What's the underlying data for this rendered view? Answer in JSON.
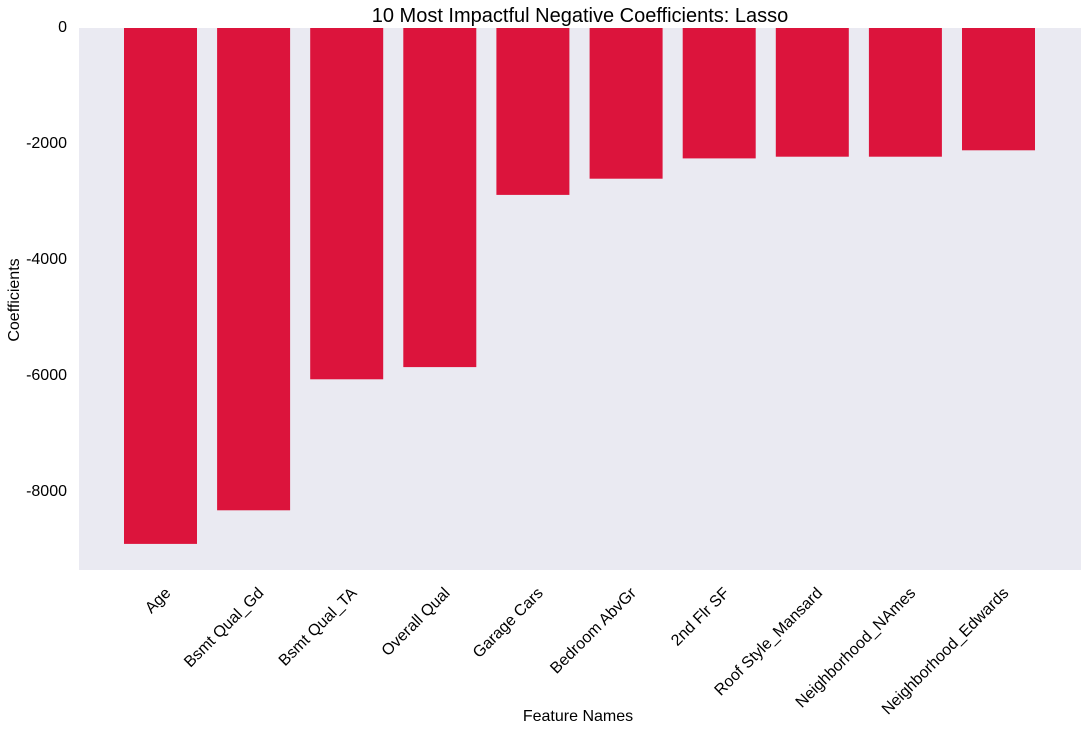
{
  "chart_data": {
    "type": "bar",
    "title": "10 Most Impactful Negative Coefficients: Lasso",
    "xlabel": "Feature Names",
    "ylabel": "Coefficients",
    "categories": [
      "Age",
      "Bsmt Qual_Gd",
      "Bsmt Qual_TA",
      "Overall Qual",
      "Garage Cars",
      "Bedroom AbvGr",
      "2nd Flr SF",
      "Roof Style_Mansard",
      "Neighborhood_NAmes",
      "Neighborhood_Edwards"
    ],
    "values": [
      -8900,
      -8320,
      -6060,
      -5850,
      -2880,
      -2600,
      -2250,
      -2220,
      -2220,
      -2110
    ],
    "ylim": [
      -9350,
      0
    ],
    "yticks": [
      0,
      -2000,
      -4000,
      -6000,
      -8000
    ],
    "ytick_labels": [
      "0",
      "-2000",
      "-4000",
      "-6000",
      "-8000"
    ],
    "grid": false,
    "colors": {
      "bar": "#DC143C",
      "plot_background": "#EAEAF2"
    }
  }
}
